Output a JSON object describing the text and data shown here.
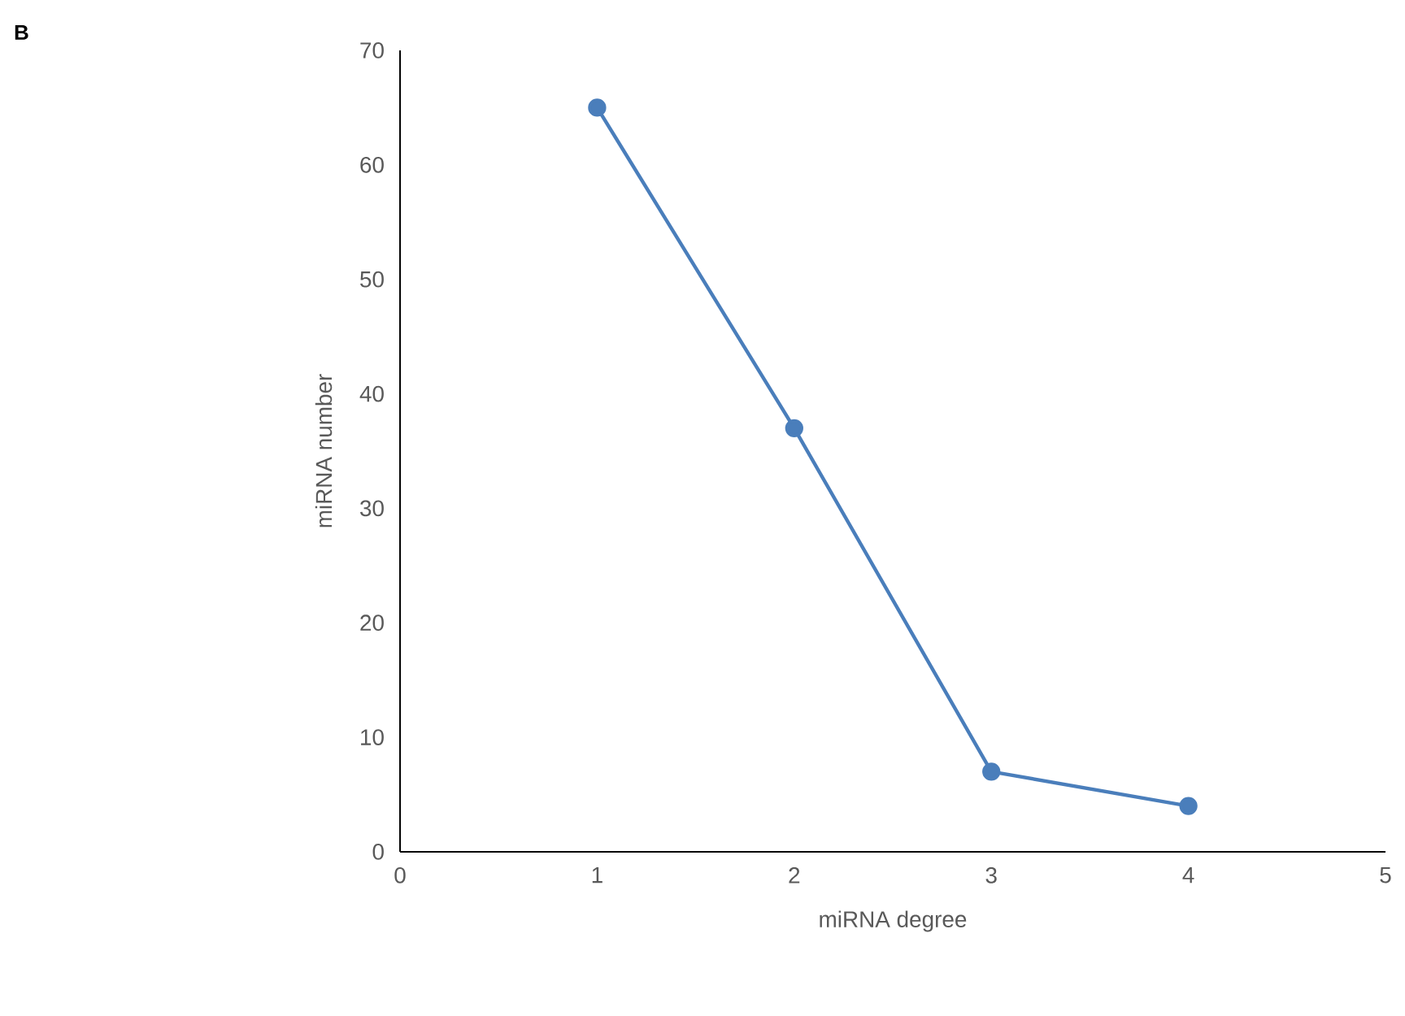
{
  "chart_data": {
    "type": "line",
    "xlabel": "miRNA degree",
    "ylabel": "miRNA number",
    "annotations": [
      "B"
    ],
    "x": [
      1,
      2,
      3,
      4
    ],
    "series": [
      {
        "color": "#4a7ebb",
        "values": [
          65,
          37,
          7,
          4
        ]
      }
    ],
    "xlim": [
      0,
      5
    ],
    "ylim": [
      0,
      70
    ],
    "xticks": [
      0,
      1,
      2,
      3,
      4,
      5
    ],
    "yticks": [
      0,
      10,
      20,
      30,
      40,
      50,
      60,
      70
    ],
    "marker": "circle",
    "line_style": "solid"
  }
}
